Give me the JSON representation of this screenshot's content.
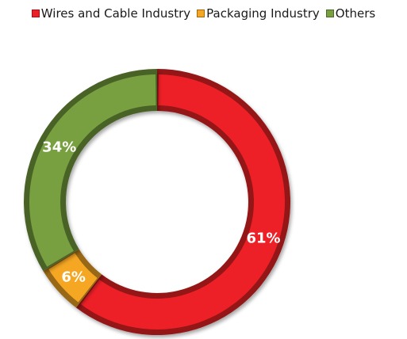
{
  "chart_data": {
    "type": "pie",
    "donut": true,
    "title": "",
    "legend_position": "top",
    "series": [
      {
        "name": "Wires and Cable Industry",
        "value": 61,
        "label": "61%",
        "color": "#ee2027"
      },
      {
        "name": "Packaging Industry",
        "value": 6,
        "label": "6%",
        "color": "#f5a623"
      },
      {
        "name": "Others",
        "value": 34,
        "label": "34%",
        "color": "#78a040"
      }
    ]
  }
}
